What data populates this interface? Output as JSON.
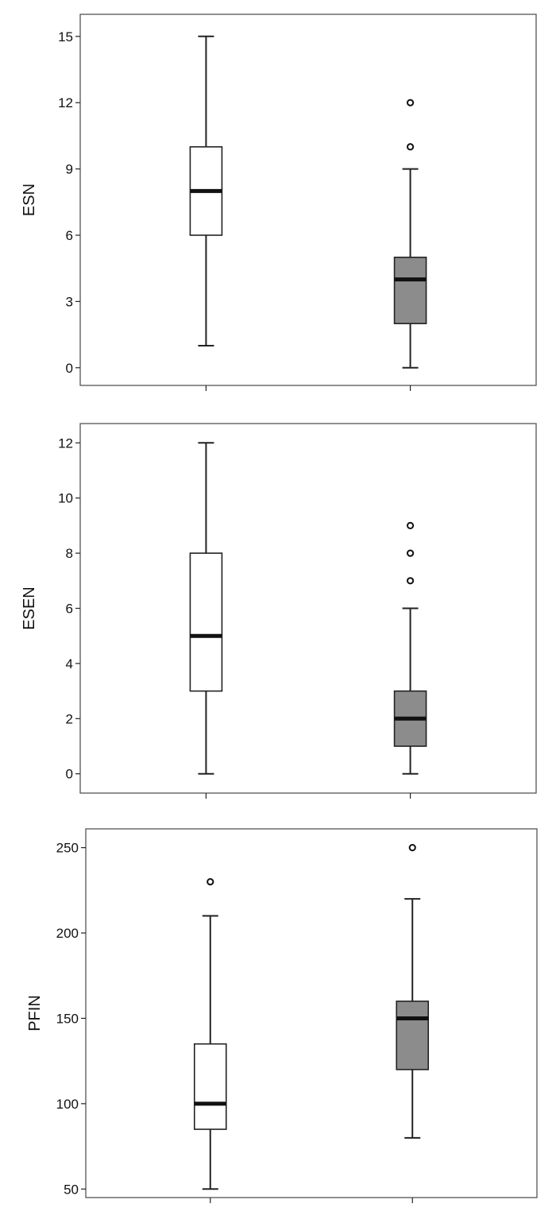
{
  "colors": {
    "group_1_fill": "#ffffff",
    "group_2_fill": "#8c8c8c",
    "stroke": "#222222",
    "frame": "#555555"
  },
  "chart_data": [
    {
      "type": "box",
      "ylabel": "ESN",
      "ylim": [
        -0.8,
        16
      ],
      "yticks": [
        0,
        3,
        6,
        9,
        12,
        15
      ],
      "grid": false,
      "boxes": [
        {
          "min": 1,
          "q1": 6,
          "median": 8,
          "q3": 10,
          "max": 15,
          "outliers": []
        },
        {
          "min": 0,
          "q1": 2,
          "median": 4,
          "q3": 5,
          "max": 9,
          "outliers": [
            10,
            12
          ]
        }
      ]
    },
    {
      "type": "box",
      "ylabel": "ESEN",
      "ylim": [
        -0.7,
        12.7
      ],
      "yticks": [
        0,
        2,
        4,
        6,
        8,
        10,
        12
      ],
      "grid": false,
      "boxes": [
        {
          "min": 0,
          "q1": 3,
          "median": 5,
          "q3": 8,
          "max": 12,
          "outliers": []
        },
        {
          "min": 0,
          "q1": 1,
          "median": 2,
          "q3": 3,
          "max": 6,
          "outliers": [
            7,
            8,
            9
          ]
        }
      ]
    },
    {
      "type": "box",
      "ylabel": "PFIN",
      "ylim": [
        45,
        261
      ],
      "yticks": [
        50,
        100,
        150,
        200,
        250
      ],
      "grid": false,
      "boxes": [
        {
          "min": 50,
          "q1": 85,
          "median": 100,
          "q3": 135,
          "max": 210,
          "outliers": [
            230
          ]
        },
        {
          "min": 80,
          "q1": 120,
          "median": 150,
          "q3": 160,
          "max": 220,
          "outliers": [
            250
          ]
        }
      ]
    }
  ]
}
